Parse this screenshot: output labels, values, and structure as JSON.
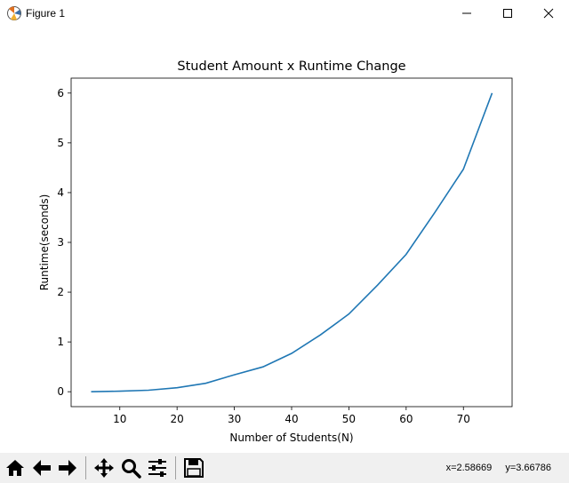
{
  "window": {
    "title": "Figure 1",
    "app_icon": "matplotlib-icon",
    "controls": [
      "minimize-icon",
      "maximize-icon",
      "close-icon"
    ]
  },
  "chart_data": {
    "type": "line",
    "title": "Student Amount x Runtime Change",
    "xlabel": "Number of Students(N)",
    "ylabel": "Runtime(seconds)",
    "xlim": [
      1.5,
      78.5
    ],
    "ylim": [
      -0.3,
      6.3
    ],
    "xticks": [
      10,
      20,
      30,
      40,
      50,
      60,
      70
    ],
    "yticks": [
      0,
      1,
      2,
      3,
      4,
      5,
      6
    ],
    "grid": false,
    "legend": "none",
    "series": [
      {
        "color": "#1f77b4",
        "x": [
          5,
          10,
          15,
          20,
          25,
          30,
          35,
          40,
          45,
          50,
          55,
          60,
          65,
          70,
          75
        ],
        "y": [
          0.0,
          0.01,
          0.03,
          0.08,
          0.17,
          0.34,
          0.5,
          0.77,
          1.14,
          1.56,
          2.14,
          2.76,
          3.6,
          4.47,
          6.0
        ]
      }
    ]
  },
  "toolbar": {
    "buttons": [
      "home-icon",
      "back-arrow-icon",
      "forward-arrow-icon",
      "pan-icon",
      "zoom-icon",
      "configure-subplots-icon",
      "save-icon"
    ]
  },
  "status": {
    "x_readout": "x=2.58669",
    "y_readout": "y=3.66786"
  }
}
